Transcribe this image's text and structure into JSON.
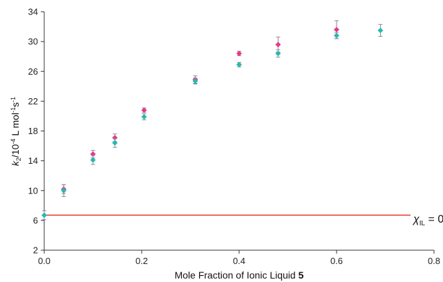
{
  "chart_data": {
    "type": "scatter",
    "title": "",
    "xlabel": {
      "main": "Mole Fraction of Ionic Liquid ",
      "bold": "5"
    },
    "ylabel": {
      "k": "k",
      "k_sub": "2",
      "unit": "/10",
      "exp1": "-4",
      "mid": " L mol",
      "exp2": "-1",
      "s": "s",
      "exp3": "-1"
    },
    "xlim": [
      0,
      0.8
    ],
    "ylim": [
      2,
      34
    ],
    "xticks": [
      "0.0",
      "0.2",
      "0.4",
      "0.6",
      "0.8"
    ],
    "yticks": [
      "2",
      "6",
      "10",
      "14",
      "18",
      "22",
      "26",
      "30",
      "34"
    ],
    "grid": false,
    "reference_line": {
      "y": 6.7,
      "label_main": "χ",
      "label_sub": "IL",
      "label_tail": " = 0",
      "color": "#e8453c"
    },
    "series": [
      {
        "color": "#e8388a",
        "points": [
          {
            "x": 0.04,
            "y": 10.2,
            "err": 0.6
          },
          {
            "x": 0.1,
            "y": 14.9,
            "err": 0.5
          },
          {
            "x": 0.145,
            "y": 17.1,
            "err": 0.5
          },
          {
            "x": 0.205,
            "y": 20.8,
            "err": 0.3
          },
          {
            "x": 0.31,
            "y": 24.9,
            "err": 0.5
          },
          {
            "x": 0.4,
            "y": 28.4,
            "err": 0.3
          },
          {
            "x": 0.48,
            "y": 29.6,
            "err": 1.0
          },
          {
            "x": 0.6,
            "y": 31.6,
            "err": 1.2
          }
        ]
      },
      {
        "color": "#26b8b5",
        "points": [
          {
            "x": 0.0,
            "y": 6.7,
            "err": 0.6
          },
          {
            "x": 0.04,
            "y": 10.0,
            "err": 0.8
          },
          {
            "x": 0.1,
            "y": 14.1,
            "err": 0.6
          },
          {
            "x": 0.145,
            "y": 16.4,
            "err": 0.6
          },
          {
            "x": 0.205,
            "y": 19.9,
            "err": 0.4
          },
          {
            "x": 0.31,
            "y": 24.7,
            "err": 0.4
          },
          {
            "x": 0.4,
            "y": 26.9,
            "err": 0.3
          },
          {
            "x": 0.48,
            "y": 28.4,
            "err": 0.5
          },
          {
            "x": 0.6,
            "y": 30.8,
            "err": 0.4
          },
          {
            "x": 0.69,
            "y": 31.5,
            "err": 0.8
          }
        ]
      }
    ]
  }
}
